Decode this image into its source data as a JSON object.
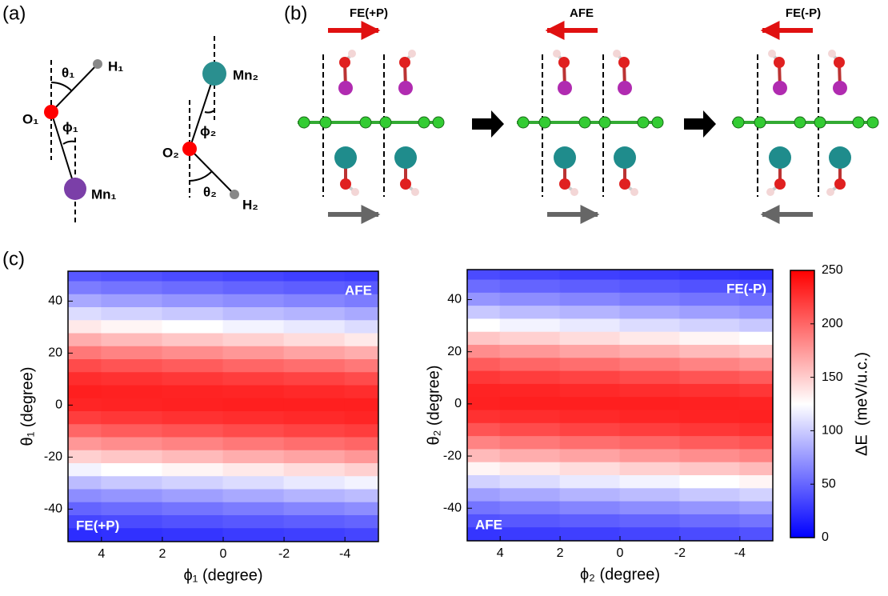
{
  "panels": {
    "a": "(a)",
    "b": "(b)",
    "c": "(c)"
  },
  "diagram_a": {
    "labels": {
      "H1": "H₁",
      "O1": "O₁",
      "theta1": "θ₁",
      "phi1": "ϕ₁",
      "Mn1": "Mn₁",
      "Mn2": "Mn₂",
      "phi2": "ϕ₂",
      "O2": "O₂",
      "theta2": "θ₂",
      "H2": "H₂"
    }
  },
  "diagram_b": {
    "states": [
      "FE(+P)",
      "AFE",
      "FE(-P)"
    ]
  },
  "colorbar": {
    "label": "ΔE  (meV/u.c.)",
    "lim": [
      0,
      250
    ],
    "ticks": [
      0,
      50,
      100,
      150,
      200,
      250
    ],
    "colormap": [
      "#0000ff",
      "#ffffff",
      "#ff0000"
    ]
  },
  "chart_data": [
    {
      "type": "heatmap",
      "xlabel": "ϕ₁ (degree)",
      "ylabel": "θ₁ (degree)",
      "x": [
        5,
        3,
        1,
        -1,
        -3,
        -5
      ],
      "y": [
        50,
        45,
        40,
        35,
        30,
        25,
        20,
        15,
        10,
        5,
        0,
        -5,
        -10,
        -15,
        -20,
        -25,
        -30,
        -35,
        -40,
        -45,
        -50
      ],
      "z": [
        [
          43,
          40,
          37,
          34,
          31,
          29
        ],
        [
          61,
          57,
          53,
          49,
          46,
          43
        ],
        [
          83,
          78,
          73,
          69,
          65,
          61
        ],
        [
          108,
          103,
          98,
          92,
          88,
          83
        ],
        [
          136,
          130,
          125,
          119,
          114,
          108
        ],
        [
          165,
          159,
          153,
          148,
          142,
          136
        ],
        [
          191,
          186,
          181,
          176,
          170,
          165
        ],
        [
          213,
          209,
          205,
          200,
          196,
          191
        ],
        [
          228,
          226,
          223,
          220,
          217,
          213
        ],
        [
          235,
          234,
          233,
          232,
          230,
          228
        ],
        [
          232,
          233,
          234,
          235,
          235,
          235
        ],
        [
          220,
          223,
          226,
          228,
          230,
          232
        ],
        [
          200,
          205,
          209,
          213,
          217,
          220
        ],
        [
          176,
          181,
          186,
          191,
          196,
          200
        ],
        [
          148,
          153,
          159,
          165,
          170,
          176
        ],
        [
          119,
          125,
          130,
          136,
          142,
          148
        ],
        [
          92,
          98,
          103,
          108,
          114,
          119
        ],
        [
          69,
          73,
          78,
          83,
          88,
          92
        ],
        [
          49,
          53,
          57,
          61,
          65,
          69
        ],
        [
          34,
          37,
          40,
          43,
          46,
          49
        ],
        [
          22,
          24,
          26,
          29,
          31,
          34
        ]
      ],
      "xlim": [
        5.1,
        -5.1
      ],
      "ylim": [
        -52.5,
        51.5
      ],
      "xticks": [
        4,
        2,
        0,
        -2,
        -4
      ],
      "yticks": [
        40,
        20,
        0,
        -20,
        -40
      ],
      "annotations": [
        {
          "text": "AFE",
          "corner": "top-right"
        },
        {
          "text": "FE(+P)",
          "corner": "bottom-left"
        }
      ]
    },
    {
      "type": "heatmap",
      "xlabel": "ϕ₂ (degree)",
      "ylabel": "θ₂ (degree)",
      "x": [
        5,
        3,
        1,
        -1,
        -3,
        -5
      ],
      "y": [
        50,
        45,
        40,
        35,
        30,
        25,
        20,
        15,
        10,
        5,
        0,
        -5,
        -10,
        -15,
        -20,
        -25,
        -30,
        -35,
        -40,
        -45,
        -50
      ],
      "z": [
        [
          37,
          34,
          31,
          29,
          26,
          24
        ],
        [
          53,
          49,
          46,
          43,
          40,
          37
        ],
        [
          73,
          69,
          65,
          61,
          57,
          53
        ],
        [
          98,
          92,
          88,
          83,
          78,
          73
        ],
        [
          125,
          119,
          114,
          108,
          103,
          98
        ],
        [
          153,
          148,
          142,
          136,
          130,
          125
        ],
        [
          181,
          176,
          170,
          165,
          159,
          153
        ],
        [
          205,
          200,
          196,
          191,
          186,
          181
        ],
        [
          223,
          220,
          217,
          213,
          209,
          205
        ],
        [
          233,
          232,
          230,
          228,
          226,
          223
        ],
        [
          234,
          235,
          235,
          235,
          234,
          233
        ],
        [
          226,
          228,
          230,
          232,
          233,
          234
        ],
        [
          209,
          213,
          217,
          220,
          223,
          226
        ],
        [
          186,
          191,
          196,
          200,
          205,
          209
        ],
        [
          159,
          165,
          170,
          176,
          181,
          186
        ],
        [
          130,
          136,
          142,
          148,
          153,
          159
        ],
        [
          103,
          108,
          114,
          119,
          125,
          130
        ],
        [
          78,
          83,
          88,
          92,
          98,
          103
        ],
        [
          57,
          61,
          65,
          69,
          73,
          78
        ],
        [
          40,
          43,
          46,
          49,
          53,
          57
        ],
        [
          26,
          29,
          31,
          34,
          37,
          40
        ]
      ],
      "xlim": [
        5.1,
        -5.1
      ],
      "ylim": [
        -52.5,
        51.5
      ],
      "xticks": [
        4,
        2,
        0,
        -2,
        -4
      ],
      "yticks": [
        40,
        20,
        0,
        -20,
        -40
      ],
      "annotations": [
        {
          "text": "FE(-P)",
          "corner": "top-right"
        },
        {
          "text": "AFE",
          "corner": "bottom-left"
        }
      ]
    }
  ]
}
